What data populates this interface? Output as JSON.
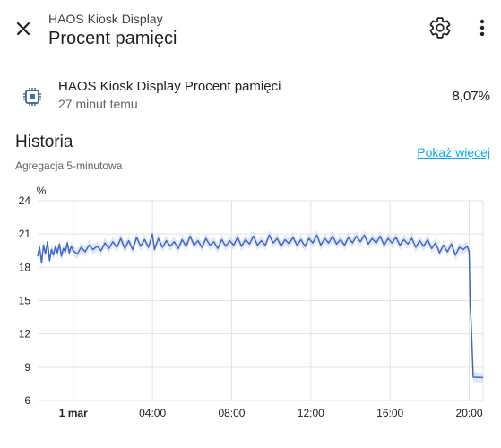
{
  "header": {
    "subtitle": "HAOS Kiosk Display",
    "title": "Procent pamięci"
  },
  "entity": {
    "name": "HAOS Kiosk Display Procent pamięci",
    "time": "27 minut temu",
    "value": "8,07%"
  },
  "history": {
    "title": "Historia",
    "aggregation": "Agregacja 5-minutowa",
    "show_more": "Pokaż więcej"
  },
  "icons": {
    "close": "close-icon",
    "settings": "gear-icon",
    "more": "dots-vertical-icon",
    "entity": "memory-chip-icon"
  },
  "colors": {
    "line": "#3f66c9",
    "band": "#c9d3ee",
    "link": "#03a9f4"
  },
  "chart_data": {
    "type": "line",
    "ylabel": "%",
    "ylim": [
      6,
      24
    ],
    "yticks": [
      "24",
      "21",
      "18",
      "15",
      "12",
      "9",
      "6"
    ],
    "xticks": [
      "1 mar",
      "04:00",
      "08:00",
      "12:00",
      "16:00",
      "20:00"
    ],
    "x_start_hours": -1.8,
    "x_end_hours": 20.7,
    "tick_hours": [
      0,
      4,
      8,
      12,
      16,
      20
    ],
    "series": [
      {
        "name": "",
        "points": [
          [
            -1.8,
            19.0
          ],
          [
            -1.7,
            19.8
          ],
          [
            -1.6,
            18.4
          ],
          [
            -1.5,
            20.0
          ],
          [
            -1.4,
            19.2
          ],
          [
            -1.3,
            20.3
          ],
          [
            -1.2,
            18.6
          ],
          [
            -1.1,
            19.6
          ],
          [
            -1.0,
            19.1
          ],
          [
            -0.9,
            19.9
          ],
          [
            -0.8,
            19.3
          ],
          [
            -0.7,
            20.1
          ],
          [
            -0.6,
            19.0
          ],
          [
            -0.5,
            19.7
          ],
          [
            -0.4,
            19.4
          ],
          [
            -0.3,
            20.2
          ],
          [
            -0.2,
            19.3
          ],
          [
            -0.1,
            19.9
          ],
          [
            0.0,
            19.5
          ],
          [
            0.2,
            19.2
          ],
          [
            0.4,
            19.8
          ],
          [
            0.6,
            19.4
          ],
          [
            0.8,
            20.0
          ],
          [
            1.0,
            19.6
          ],
          [
            1.2,
            19.9
          ],
          [
            1.4,
            19.5
          ],
          [
            1.6,
            20.2
          ],
          [
            1.8,
            19.7
          ],
          [
            2.0,
            20.3
          ],
          [
            2.2,
            19.8
          ],
          [
            2.4,
            20.6
          ],
          [
            2.6,
            19.7
          ],
          [
            2.8,
            20.4
          ],
          [
            3.0,
            19.6
          ],
          [
            3.2,
            20.7
          ],
          [
            3.4,
            19.9
          ],
          [
            3.6,
            20.5
          ],
          [
            3.8,
            19.8
          ],
          [
            4.0,
            21.0
          ],
          [
            4.1,
            19.6
          ],
          [
            4.3,
            20.6
          ],
          [
            4.5,
            19.8
          ],
          [
            4.7,
            20.4
          ],
          [
            4.9,
            19.9
          ],
          [
            5.1,
            20.3
          ],
          [
            5.3,
            19.7
          ],
          [
            5.5,
            20.5
          ],
          [
            5.7,
            19.9
          ],
          [
            5.9,
            20.8
          ],
          [
            6.1,
            20.0
          ],
          [
            6.3,
            20.4
          ],
          [
            6.5,
            19.8
          ],
          [
            6.7,
            20.6
          ],
          [
            6.9,
            20.0
          ],
          [
            7.1,
            20.3
          ],
          [
            7.3,
            19.7
          ],
          [
            7.5,
            20.5
          ],
          [
            7.7,
            19.9
          ],
          [
            7.9,
            20.4
          ],
          [
            8.1,
            20.0
          ],
          [
            8.3,
            20.7
          ],
          [
            8.5,
            19.9
          ],
          [
            8.7,
            20.5
          ],
          [
            8.9,
            20.1
          ],
          [
            9.1,
            20.8
          ],
          [
            9.3,
            20.0
          ],
          [
            9.5,
            20.4
          ],
          [
            9.7,
            20.0
          ],
          [
            9.9,
            20.9
          ],
          [
            10.1,
            20.2
          ],
          [
            10.3,
            20.6
          ],
          [
            10.5,
            19.9
          ],
          [
            10.7,
            20.5
          ],
          [
            10.9,
            20.1
          ],
          [
            11.1,
            20.7
          ],
          [
            11.3,
            20.0
          ],
          [
            11.5,
            20.5
          ],
          [
            11.7,
            19.9
          ],
          [
            11.9,
            20.6
          ],
          [
            12.1,
            20.2
          ],
          [
            12.3,
            20.9
          ],
          [
            12.5,
            20.0
          ],
          [
            12.7,
            20.6
          ],
          [
            12.9,
            20.2
          ],
          [
            13.1,
            20.8
          ],
          [
            13.3,
            20.1
          ],
          [
            13.5,
            20.5
          ],
          [
            13.7,
            20.0
          ],
          [
            13.9,
            20.7
          ],
          [
            14.1,
            20.2
          ],
          [
            14.3,
            20.8
          ],
          [
            14.5,
            20.3
          ],
          [
            14.7,
            20.9
          ],
          [
            14.9,
            20.1
          ],
          [
            15.1,
            20.6
          ],
          [
            15.3,
            20.2
          ],
          [
            15.5,
            20.8
          ],
          [
            15.7,
            20.0
          ],
          [
            15.9,
            20.6
          ],
          [
            16.1,
            20.2
          ],
          [
            16.3,
            20.7
          ],
          [
            16.5,
            20.0
          ],
          [
            16.7,
            20.5
          ],
          [
            16.9,
            20.1
          ],
          [
            17.1,
            20.6
          ],
          [
            17.3,
            19.8
          ],
          [
            17.5,
            20.4
          ],
          [
            17.7,
            19.9
          ],
          [
            17.9,
            20.5
          ],
          [
            18.1,
            19.7
          ],
          [
            18.3,
            20.2
          ],
          [
            18.5,
            19.3
          ],
          [
            18.7,
            20.0
          ],
          [
            18.9,
            19.4
          ],
          [
            19.1,
            20.1
          ],
          [
            19.3,
            19.1
          ],
          [
            19.5,
            19.8
          ],
          [
            19.7,
            19.6
          ],
          [
            19.9,
            19.9
          ],
          [
            20.0,
            19.4
          ],
          [
            20.05,
            14.5
          ],
          [
            20.1,
            13.0
          ],
          [
            20.2,
            8.1
          ],
          [
            20.7,
            8.07
          ]
        ]
      }
    ]
  }
}
